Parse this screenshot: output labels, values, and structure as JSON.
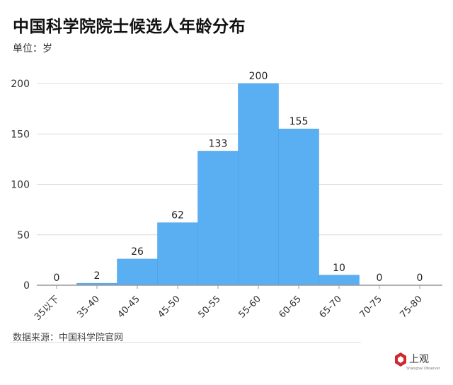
{
  "chart_data": {
    "type": "bar",
    "title": "中国科学院院士候选人年龄分布",
    "subtitle": "单位：岁",
    "categories": [
      "35以下",
      "35-40",
      "40-45",
      "45-50",
      "50-55",
      "55-60",
      "60-65",
      "65-70",
      "70-75",
      "75-80"
    ],
    "values": [
      0,
      2,
      26,
      62,
      133,
      200,
      155,
      10,
      0,
      0
    ],
    "ylim": [
      0,
      200
    ],
    "yticks": [
      0,
      50,
      100,
      150,
      200
    ],
    "xlabel": "",
    "ylabel": "",
    "grid": true,
    "bar_color": "#5aaef2"
  },
  "source": "数据来源：中国科学院官网",
  "logo": {
    "text": "上观",
    "sub": "Shanghai Observer",
    "color": "#d0282e"
  }
}
